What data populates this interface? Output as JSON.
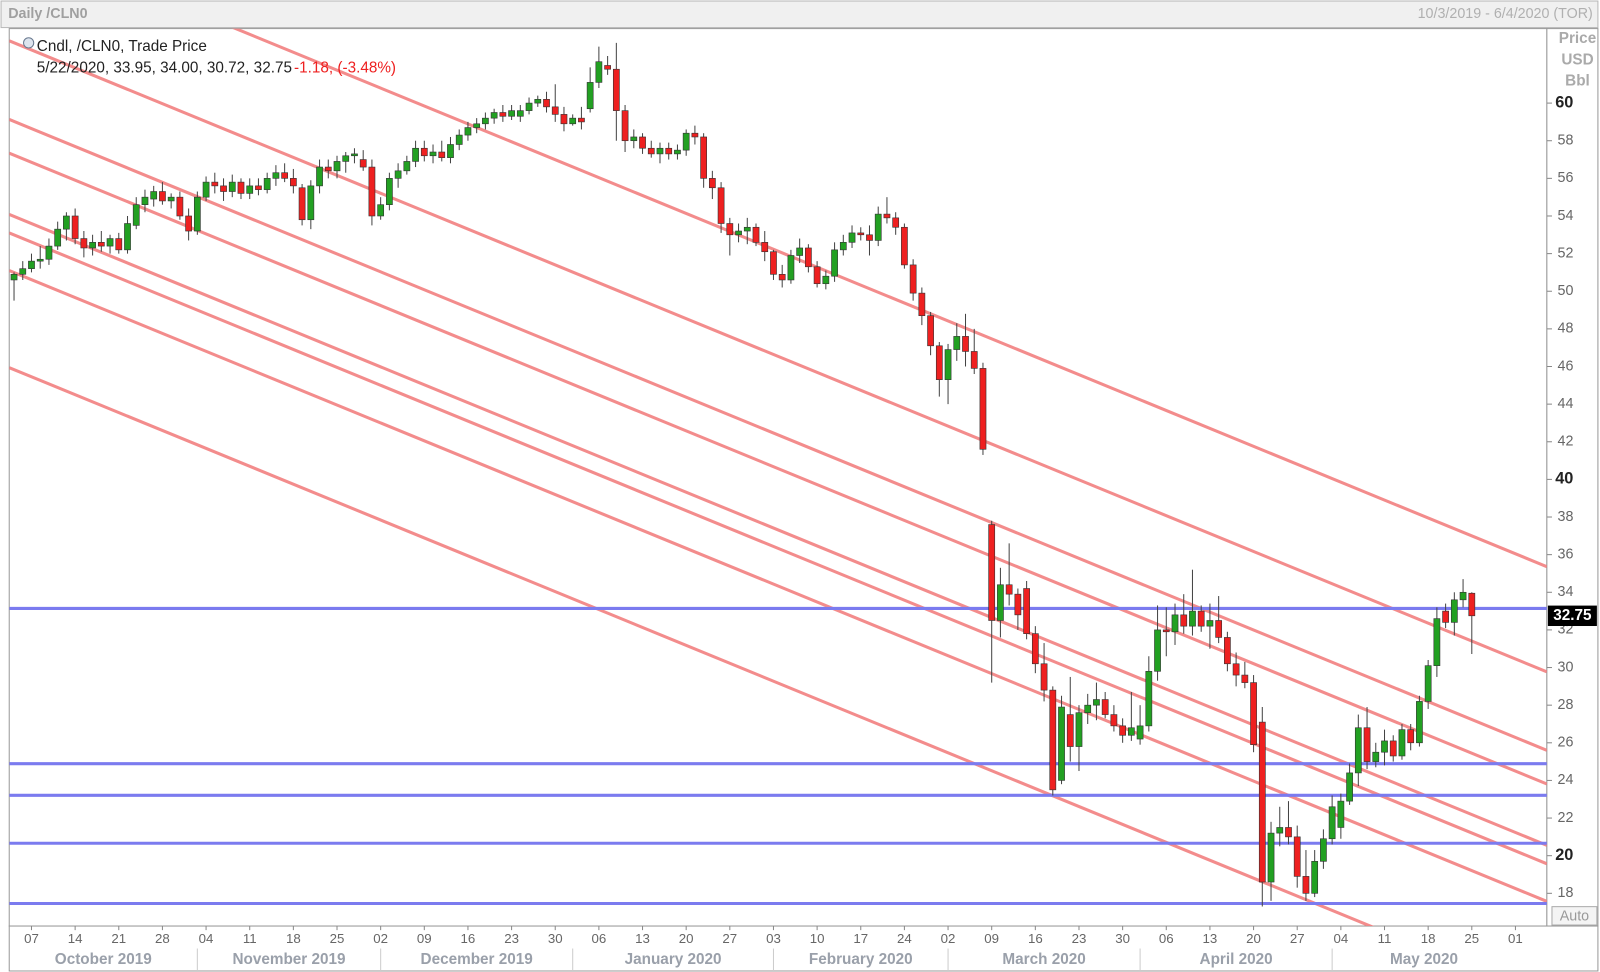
{
  "chart_data": {
    "type": "candlestick",
    "title": "Daily /CLN0",
    "date_range": "10/3/2019 - 6/4/2020 (TOR)",
    "legend": {
      "title": "Cndl, /CLN0, Trade Price",
      "info": "5/22/2020, 33.95, 34.00, 30.72, 32.75",
      "change": "-1.18, (-3.48%)"
    },
    "y_label": [
      "Price",
      "USD",
      "Bbl"
    ],
    "auto_button": "Auto",
    "up_color": "#22a022",
    "down_color": "#ee2020",
    "hline_color": "#7b7bef",
    "trend_color": "#f28080",
    "xlim": [
      -0.55,
      175.6
    ],
    "ylim": [
      16.26,
      63.96
    ],
    "yticks": [
      18,
      20,
      22,
      24,
      26,
      28,
      30,
      32,
      34,
      36,
      38,
      40,
      42,
      44,
      46,
      48,
      50,
      52,
      54,
      56,
      58,
      60
    ],
    "xticks": [
      {
        "value": 2,
        "label": "07"
      },
      {
        "value": 7,
        "label": "14"
      },
      {
        "value": 12,
        "label": "21"
      },
      {
        "value": 17,
        "label": "28"
      },
      {
        "value": 22,
        "label": "04"
      },
      {
        "value": 27,
        "label": "11"
      },
      {
        "value": 32,
        "label": "18"
      },
      {
        "value": 37,
        "label": "25"
      },
      {
        "value": 42,
        "label": "02"
      },
      {
        "value": 47,
        "label": "09"
      },
      {
        "value": 52,
        "label": "16"
      },
      {
        "value": 57,
        "label": "23"
      },
      {
        "value": 62,
        "label": "30"
      },
      {
        "value": 67,
        "label": "06"
      },
      {
        "value": 72,
        "label": "13"
      },
      {
        "value": 77,
        "label": "20"
      },
      {
        "value": 82,
        "label": "27"
      },
      {
        "value": 87,
        "label": "03"
      },
      {
        "value": 92,
        "label": "10"
      },
      {
        "value": 97,
        "label": "17"
      },
      {
        "value": 102,
        "label": "24"
      },
      {
        "value": 107,
        "label": "02"
      },
      {
        "value": 112,
        "label": "09"
      },
      {
        "value": 117,
        "label": "16"
      },
      {
        "value": 122,
        "label": "23"
      },
      {
        "value": 127,
        "label": "30"
      },
      {
        "value": 132,
        "label": "06"
      },
      {
        "value": 137,
        "label": "13"
      },
      {
        "value": 142,
        "label": "20"
      },
      {
        "value": 147,
        "label": "27"
      },
      {
        "value": 152,
        "label": "04"
      },
      {
        "value": 157,
        "label": "11"
      },
      {
        "value": 162,
        "label": "18"
      },
      {
        "value": 167,
        "label": "25"
      },
      {
        "value": 172,
        "label": "01"
      }
    ],
    "months": [
      {
        "value": -2,
        "label": "October 2019"
      },
      {
        "value": 21,
        "label": "November 2019"
      },
      {
        "value": 42,
        "label": "December 2019"
      },
      {
        "value": 64,
        "label": "January 2020"
      },
      {
        "value": 87,
        "label": "February 2020"
      },
      {
        "value": 107,
        "label": "March 2020"
      },
      {
        "value": 129,
        "label": "April 2020"
      },
      {
        "value": 151,
        "label": "May 2020"
      }
    ],
    "hlines": [
      33.14,
      24.89,
      23.21,
      20.66,
      17.46
    ],
    "trendlines": [
      [
        [
          -0.55,
          68.9
        ],
        [
          175.6,
          35.36
        ]
      ],
      [
        [
          -0.55,
          63.31
        ],
        [
          175.6,
          29.77
        ]
      ],
      [
        [
          -0.55,
          59.13
        ],
        [
          175.6,
          25.6
        ]
      ],
      [
        [
          -0.55,
          57.34
        ],
        [
          175.6,
          23.81
        ]
      ],
      [
        [
          -0.55,
          54.08
        ],
        [
          175.6,
          20.55
        ]
      ],
      [
        [
          -0.55,
          53.1
        ],
        [
          175.6,
          19.57
        ]
      ],
      [
        [
          -0.55,
          51.1
        ],
        [
          175.6,
          17.57
        ]
      ],
      [
        [
          -0.55,
          45.94
        ],
        [
          175.6,
          12.41
        ]
      ]
    ],
    "candles": [
      [
        50.6,
        51.0,
        49.5,
        50.9
      ],
      [
        50.9,
        51.6,
        50.6,
        51.2
      ],
      [
        51.2,
        52.0,
        51.0,
        51.6
      ],
      [
        51.6,
        52.4,
        51.2,
        51.7
      ],
      [
        51.7,
        52.8,
        51.4,
        52.4
      ],
      [
        52.4,
        53.7,
        52.2,
        53.3
      ],
      [
        53.3,
        54.2,
        52.7,
        54.0
      ],
      [
        54.0,
        54.4,
        52.5,
        52.8
      ],
      [
        52.8,
        53.2,
        51.8,
        52.3
      ],
      [
        52.3,
        53.0,
        51.9,
        52.6
      ],
      [
        52.6,
        53.2,
        52.1,
        52.4
      ],
      [
        52.4,
        53.0,
        52.0,
        52.8
      ],
      [
        52.8,
        53.1,
        52.0,
        52.2
      ],
      [
        52.2,
        54.0,
        52.0,
        53.6
      ],
      [
        53.5,
        55.0,
        53.3,
        54.6
      ],
      [
        54.6,
        55.4,
        54.2,
        55.0
      ],
      [
        54.9,
        55.6,
        54.5,
        55.3
      ],
      [
        55.3,
        55.8,
        54.6,
        54.8
      ],
      [
        54.8,
        55.2,
        54.4,
        55.0
      ],
      [
        55.0,
        55.3,
        53.8,
        54.0
      ],
      [
        54.0,
        54.4,
        52.7,
        53.2
      ],
      [
        53.2,
        55.3,
        53.0,
        55.0
      ],
      [
        55.0,
        56.1,
        54.8,
        55.8
      ],
      [
        55.8,
        56.3,
        55.2,
        55.6
      ],
      [
        55.6,
        56.0,
        54.8,
        55.3
      ],
      [
        55.3,
        56.2,
        55.0,
        55.8
      ],
      [
        55.8,
        56.0,
        54.9,
        55.2
      ],
      [
        55.2,
        56.0,
        54.9,
        55.6
      ],
      [
        55.6,
        56.0,
        55.1,
        55.4
      ],
      [
        55.4,
        56.3,
        55.2,
        56.0
      ],
      [
        56.0,
        56.7,
        55.6,
        56.3
      ],
      [
        56.3,
        56.8,
        55.8,
        56.0
      ],
      [
        56.0,
        56.5,
        55.2,
        55.6
      ],
      [
        55.5,
        55.7,
        53.5,
        53.8
      ],
      [
        53.8,
        55.9,
        53.3,
        55.6
      ],
      [
        55.6,
        57.0,
        55.2,
        56.6
      ],
      [
        56.6,
        57.0,
        56.0,
        56.4
      ],
      [
        56.4,
        57.2,
        56.0,
        56.9
      ],
      [
        56.9,
        57.4,
        56.3,
        57.2
      ],
      [
        57.2,
        57.6,
        56.8,
        57.3
      ],
      [
        57.0,
        57.5,
        56.4,
        56.6
      ],
      [
        56.6,
        57.0,
        53.5,
        54.0
      ],
      [
        54.0,
        55.0,
        53.8,
        54.6
      ],
      [
        54.6,
        56.3,
        54.3,
        56.0
      ],
      [
        56.0,
        56.8,
        55.5,
        56.4
      ],
      [
        56.4,
        57.2,
        56.2,
        56.9
      ],
      [
        56.9,
        58.0,
        56.6,
        57.6
      ],
      [
        57.6,
        58.0,
        56.9,
        57.2
      ],
      [
        57.2,
        57.8,
        56.8,
        57.4
      ],
      [
        57.4,
        58.0,
        56.9,
        57.1
      ],
      [
        57.1,
        58.2,
        56.8,
        57.8
      ],
      [
        57.8,
        58.6,
        57.5,
        58.3
      ],
      [
        58.3,
        59.0,
        58.0,
        58.7
      ],
      [
        58.7,
        59.2,
        58.4,
        58.9
      ],
      [
        58.9,
        59.5,
        58.6,
        59.2
      ],
      [
        59.2,
        59.7,
        58.9,
        59.5
      ],
      [
        59.5,
        59.9,
        59.0,
        59.3
      ],
      [
        59.3,
        59.9,
        59.1,
        59.6
      ],
      [
        59.3,
        59.9,
        59.0,
        59.6
      ],
      [
        59.6,
        60.3,
        59.4,
        60.0
      ],
      [
        60.0,
        60.4,
        59.8,
        60.2
      ],
      [
        60.2,
        60.6,
        59.5,
        59.8
      ],
      [
        59.8,
        61.0,
        59.0,
        59.4
      ],
      [
        59.4,
        59.8,
        58.5,
        58.9
      ],
      [
        58.9,
        59.4,
        58.8,
        59.2
      ],
      [
        59.2,
        59.8,
        58.6,
        59.0
      ],
      [
        59.7,
        61.9,
        59.5,
        61.1
      ],
      [
        61.1,
        63.0,
        60.8,
        62.2
      ],
      [
        62.0,
        62.5,
        61.5,
        61.8
      ],
      [
        61.8,
        63.2,
        58.0,
        59.6
      ],
      [
        59.6,
        59.9,
        57.4,
        58.0
      ],
      [
        58.0,
        58.6,
        57.6,
        58.2
      ],
      [
        58.2,
        58.4,
        57.3,
        57.6
      ],
      [
        57.6,
        58.0,
        57.1,
        57.3
      ],
      [
        57.3,
        57.9,
        56.8,
        57.6
      ],
      [
        57.6,
        57.9,
        57.0,
        57.3
      ],
      [
        57.3,
        57.8,
        57.0,
        57.5
      ],
      [
        57.5,
        58.6,
        57.2,
        58.4
      ],
      [
        58.4,
        58.8,
        57.8,
        58.2
      ],
      [
        58.2,
        58.4,
        55.5,
        56.0
      ],
      [
        56.0,
        56.4,
        54.9,
        55.5
      ],
      [
        55.5,
        55.8,
        53.1,
        53.6
      ],
      [
        53.6,
        53.9,
        51.9,
        53.0
      ],
      [
        53.0,
        53.6,
        52.6,
        53.2
      ],
      [
        53.2,
        53.9,
        52.5,
        53.4
      ],
      [
        53.4,
        53.6,
        52.4,
        52.6
      ],
      [
        52.6,
        53.2,
        51.6,
        52.1
      ],
      [
        52.1,
        52.2,
        50.6,
        50.9
      ],
      [
        50.9,
        51.4,
        50.2,
        50.6
      ],
      [
        50.6,
        52.2,
        50.4,
        51.9
      ],
      [
        51.9,
        52.8,
        51.5,
        52.3
      ],
      [
        52.3,
        52.5,
        51.0,
        51.3
      ],
      [
        51.3,
        51.6,
        50.2,
        50.4
      ],
      [
        50.4,
        51.1,
        50.1,
        50.8
      ],
      [
        50.8,
        52.6,
        50.5,
        52.2
      ],
      [
        52.2,
        53.0,
        51.9,
        52.6
      ],
      [
        52.6,
        53.5,
        52.3,
        53.1
      ],
      [
        53.1,
        53.4,
        52.7,
        53.0
      ],
      [
        53.0,
        53.5,
        51.9,
        52.7
      ],
      [
        52.7,
        54.5,
        52.4,
        54.1
      ],
      [
        54.1,
        55.0,
        53.6,
        53.9
      ],
      [
        53.9,
        54.2,
        53.0,
        53.4
      ],
      [
        53.4,
        53.6,
        51.2,
        51.4
      ],
      [
        51.4,
        51.7,
        49.5,
        49.9
      ],
      [
        49.9,
        50.2,
        48.2,
        48.7
      ],
      [
        48.7,
        48.9,
        46.6,
        47.1
      ],
      [
        47.1,
        47.3,
        44.4,
        45.3
      ],
      [
        45.3,
        47.2,
        44.0,
        46.9
      ],
      [
        46.9,
        48.3,
        46.3,
        47.6
      ],
      [
        47.6,
        48.8,
        46.0,
        46.8
      ],
      [
        46.8,
        48.0,
        45.6,
        45.9
      ],
      [
        45.9,
        46.2,
        41.3,
        41.6
      ],
      [
        37.6,
        37.8,
        29.2,
        32.5
      ],
      [
        32.5,
        35.3,
        31.6,
        34.4
      ],
      [
        34.4,
        36.6,
        33.3,
        33.9
      ],
      [
        33.9,
        34.2,
        32.0,
        32.8
      ],
      [
        34.2,
        34.6,
        31.5,
        31.8
      ],
      [
        31.8,
        32.2,
        29.7,
        30.2
      ],
      [
        30.2,
        31.3,
        28.2,
        28.8
      ],
      [
        28.8,
        29.0,
        23.2,
        23.5
      ],
      [
        24.0,
        28.5,
        23.8,
        27.9
      ],
      [
        27.5,
        29.5,
        25.0,
        25.8
      ],
      [
        25.8,
        28.0,
        24.5,
        27.6
      ],
      [
        27.6,
        28.6,
        27.0,
        28.0
      ],
      [
        28.0,
        29.2,
        27.2,
        28.3
      ],
      [
        28.3,
        28.7,
        27.3,
        27.5
      ],
      [
        27.5,
        28.0,
        26.6,
        26.9
      ],
      [
        26.9,
        27.3,
        26.0,
        26.4
      ],
      [
        26.4,
        28.7,
        26.1,
        26.8
      ],
      [
        26.2,
        28.0,
        25.9,
        26.9
      ],
      [
        26.9,
        30.6,
        26.6,
        29.8
      ],
      [
        29.8,
        33.3,
        29.3,
        32.0
      ],
      [
        32.0,
        33.2,
        30.6,
        31.9
      ],
      [
        31.9,
        33.4,
        31.2,
        32.8
      ],
      [
        32.8,
        33.9,
        31.8,
        32.2
      ],
      [
        32.2,
        35.2,
        31.7,
        33.0
      ],
      [
        33.0,
        33.3,
        31.9,
        32.2
      ],
      [
        32.2,
        33.4,
        31.0,
        32.5
      ],
      [
        32.5,
        33.8,
        31.3,
        31.6
      ],
      [
        31.6,
        31.9,
        29.8,
        30.2
      ],
      [
        30.2,
        30.8,
        29.0,
        29.6
      ],
      [
        29.6,
        30.3,
        28.9,
        29.2
      ],
      [
        29.2,
        29.6,
        25.5,
        25.9
      ],
      [
        27.1,
        27.9,
        17.3,
        18.6
      ],
      [
        18.6,
        21.8,
        17.6,
        21.2
      ],
      [
        21.2,
        22.6,
        20.5,
        21.5
      ],
      [
        21.5,
        22.9,
        20.6,
        21.0
      ],
      [
        21.0,
        21.6,
        18.3,
        18.9
      ],
      [
        18.9,
        20.3,
        17.6,
        18.0
      ],
      [
        18.0,
        20.3,
        17.8,
        19.7
      ],
      [
        19.7,
        21.4,
        19.3,
        20.9
      ],
      [
        20.9,
        23.2,
        20.6,
        22.6
      ],
      [
        21.5,
        23.3,
        20.9,
        22.9
      ],
      [
        22.9,
        24.9,
        22.7,
        24.4
      ],
      [
        24.4,
        27.5,
        23.7,
        26.8
      ],
      [
        26.8,
        27.9,
        24.6,
        25.0
      ],
      [
        25.0,
        26.0,
        24.7,
        25.5
      ],
      [
        25.5,
        26.7,
        24.8,
        26.1
      ],
      [
        26.1,
        26.4,
        25.0,
        25.3
      ],
      [
        25.3,
        27.0,
        25.1,
        26.7
      ],
      [
        26.7,
        27.0,
        25.6,
        26.0
      ],
      [
        26.0,
        28.5,
        25.8,
        28.2
      ],
      [
        28.2,
        30.4,
        27.8,
        30.1
      ],
      [
        30.1,
        33.2,
        29.5,
        32.6
      ],
      [
        33.0,
        33.4,
        32.1,
        32.4
      ],
      [
        32.4,
        34.0,
        31.7,
        33.6
      ],
      [
        33.6,
        34.7,
        33.2,
        34.0
      ],
      [
        33.95,
        34.0,
        30.72,
        32.75
      ]
    ]
  }
}
